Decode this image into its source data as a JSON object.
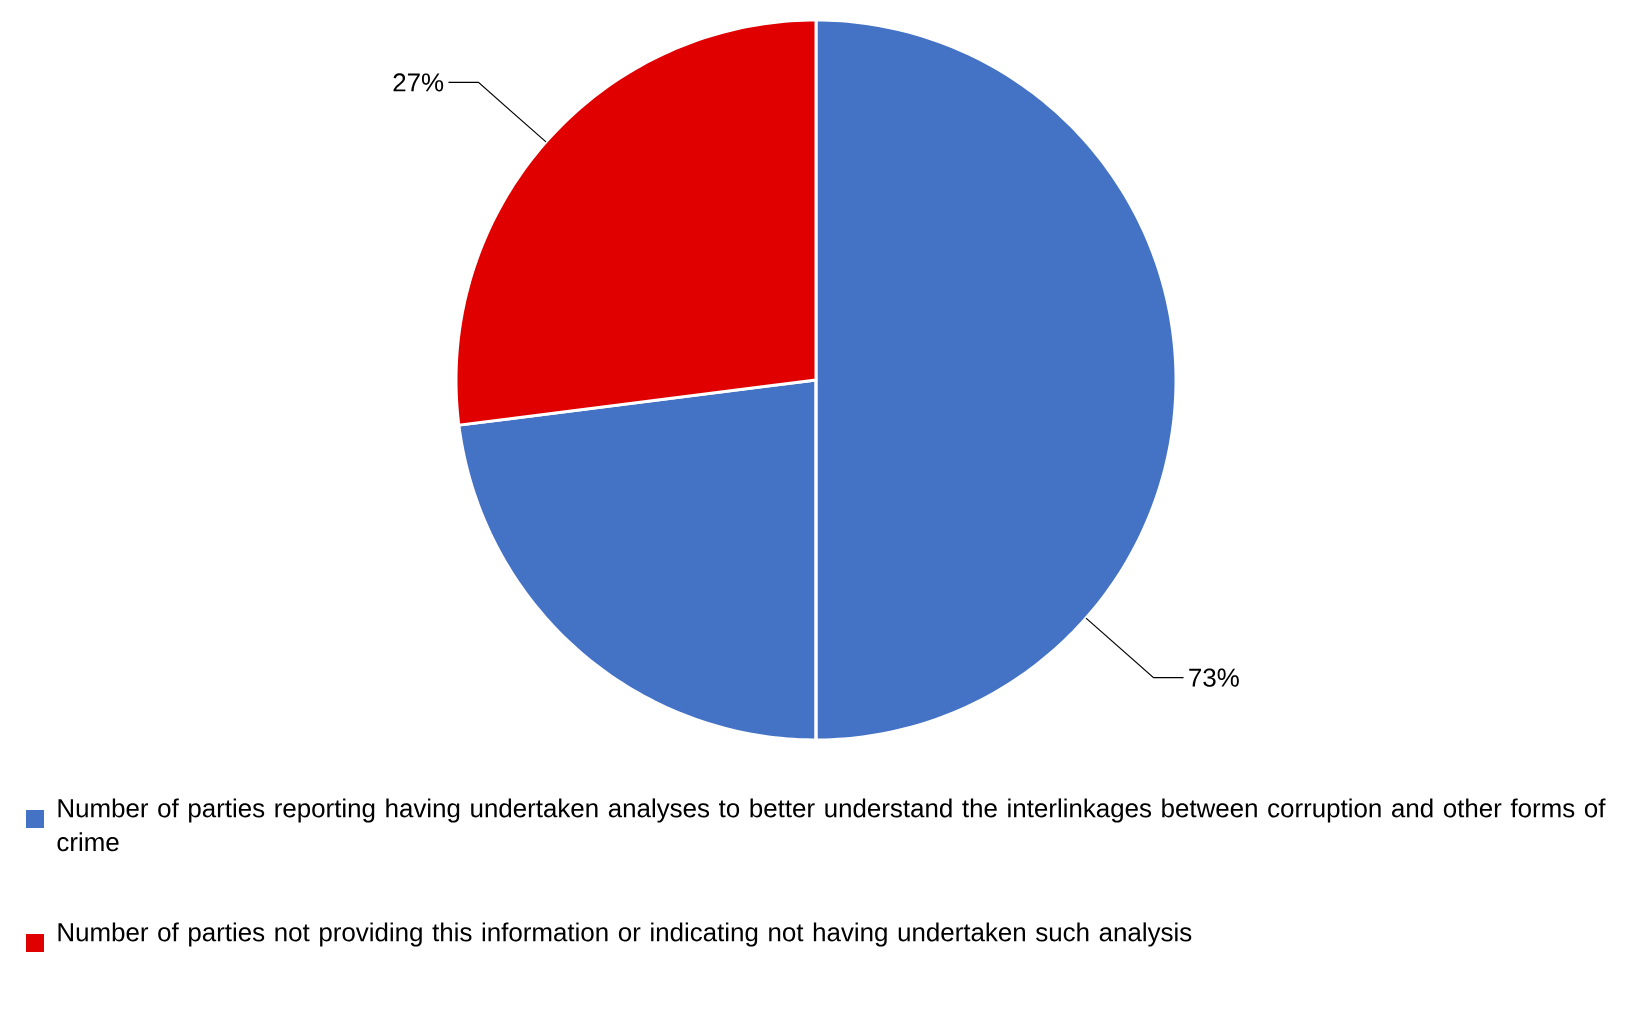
{
  "chart_data": {
    "type": "pie",
    "categories": [
      "Number of parties reporting having undertaken analyses to better understand the interlinkages between corruption and other forms of crime",
      "Number of parties not providing this information or indicating not having undertaken such analysis"
    ],
    "values": [
      73,
      27
    ],
    "colors": [
      "#4472c4",
      "#e00000"
    ],
    "value_labels": [
      "73%",
      "27%"
    ],
    "legend": "bottom"
  }
}
